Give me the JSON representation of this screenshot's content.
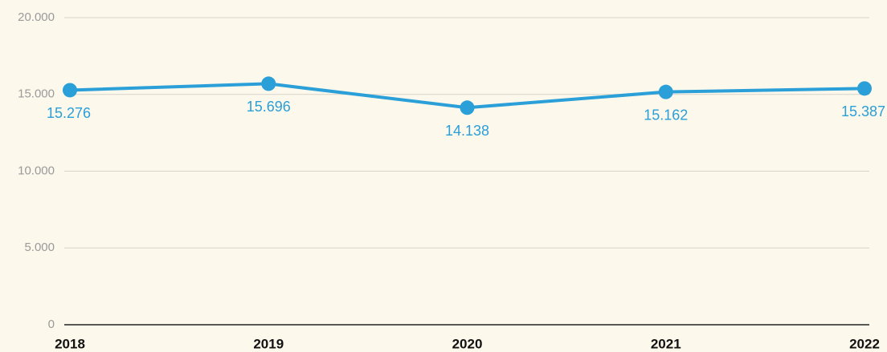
{
  "chart_data": {
    "type": "line",
    "categories": [
      "2018",
      "2019",
      "2020",
      "2021",
      "2022"
    ],
    "series": [
      {
        "color": "#2a9fd8",
        "values": [
          15276,
          15696,
          14138,
          15162,
          15387
        ],
        "value_labels": [
          "15.276",
          "15.696",
          "14.138",
          "15.162",
          "15.387"
        ]
      }
    ],
    "ylim": [
      0,
      20000
    ],
    "yticks": [
      0,
      {
        "value": 5000,
        "label": "5.000"
      },
      {
        "value": 10000,
        "label": "10.000"
      },
      {
        "value": 15000,
        "label": "15.000"
      },
      {
        "value": 20000,
        "label": "20.000"
      }
    ],
    "grid": true
  }
}
